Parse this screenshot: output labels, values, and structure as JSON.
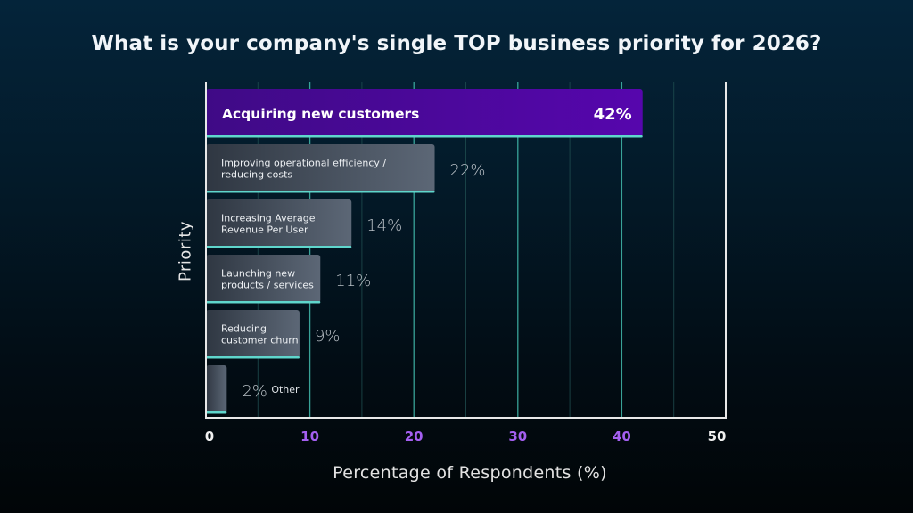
{
  "chart_data": {
    "type": "bar",
    "orientation": "horizontal",
    "title": "What is your company's single TOP business priority for 2026?",
    "xlabel": "Percentage of Respondents (%)",
    "ylabel": "Priority",
    "xlim": [
      0,
      50
    ],
    "x_ticks": [
      0,
      10,
      20,
      30,
      40,
      50
    ],
    "x_tick_labels": [
      "0",
      "10",
      "20",
      "30",
      "40",
      "50"
    ],
    "grid": "vertical, major every 10, minor every 5",
    "categories": [
      [
        "Acquiring new customers"
      ],
      [
        "Improving operational efficiency /",
        "reducing costs"
      ],
      [
        "Increasing Average",
        "Revenue Per User"
      ],
      [
        "Launching new",
        "products / services"
      ],
      [
        "Reducing",
        "customer churn"
      ],
      [
        "Other"
      ]
    ],
    "values": [
      42,
      22,
      14,
      11,
      9,
      2
    ],
    "value_labels": [
      "42%",
      "22%",
      "14%",
      "11%",
      "9%",
      "2%"
    ],
    "highlight_index": 0,
    "colors": {
      "highlight_start": "#3f0a86",
      "highlight_end": "#5606ad",
      "bar_start": "#2f3742",
      "bar_end": "#5c6776",
      "bar_underline": "#5fd6cc",
      "grid_major": "#3fb3a6",
      "grid_minor": "#1f4d4f",
      "axis": "#e8e8e8",
      "tick_purple": "#a45ff0",
      "tick_white": "#f0f0f0",
      "value_label": "#b9c0c6"
    }
  }
}
